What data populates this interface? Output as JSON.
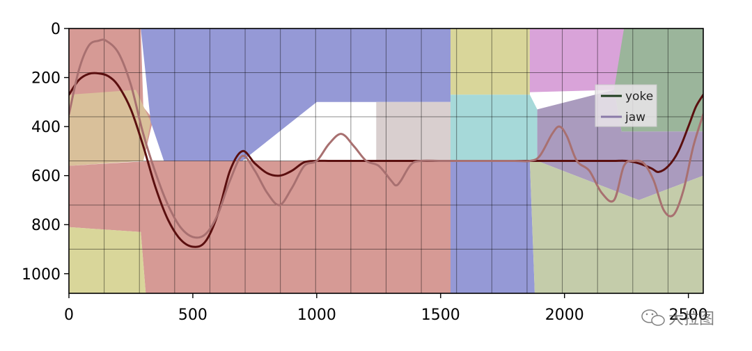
{
  "chart_data": {
    "type": "line",
    "title": "",
    "xlabel": "",
    "ylabel": "",
    "xlim": [
      0,
      2560
    ],
    "ylim": [
      1080,
      0
    ],
    "y_inverted": true,
    "grid": true,
    "x_ticks": [
      0,
      500,
      1000,
      1500,
      2000,
      2500
    ],
    "x_tick_labels": [
      "0",
      "500",
      "1000",
      "1500",
      "2000",
      "2500"
    ],
    "y_ticks": [
      0,
      200,
      400,
      600,
      800,
      1000
    ],
    "y_tick_labels": [
      "0",
      "200",
      "400",
      "600",
      "800",
      "1000"
    ],
    "legend_position": "upper-right",
    "background_regions": [
      {
        "color": "#d69a95",
        "points": [
          [
            0,
            0
          ],
          [
            290,
            0
          ],
          [
            300,
            320
          ],
          [
            340,
            370
          ],
          [
            300,
            540
          ],
          [
            0,
            540
          ]
        ]
      },
      {
        "color": "#d9c09a",
        "points": [
          [
            0,
            270
          ],
          [
            270,
            250
          ],
          [
            330,
            380
          ],
          [
            300,
            540
          ],
          [
            0,
            560
          ]
        ]
      },
      {
        "color": "#9599d6",
        "points": [
          [
            290,
            0
          ],
          [
            1540,
            0
          ],
          [
            1540,
            300
          ],
          [
            1000,
            300
          ],
          [
            700,
            540
          ],
          [
            540,
            710
          ],
          [
            440,
            710
          ],
          [
            330,
            380
          ]
        ]
      },
      {
        "color": "#d69a95",
        "points": [
          [
            0,
            560
          ],
          [
            330,
            540
          ],
          [
            700,
            540
          ],
          [
            1000,
            540
          ],
          [
            1540,
            540
          ],
          [
            1540,
            1080
          ],
          [
            310,
            1080
          ],
          [
            290,
            830
          ],
          [
            0,
            810
          ]
        ]
      },
      {
        "color": "#d9d69a",
        "points": [
          [
            0,
            810
          ],
          [
            290,
            830
          ],
          [
            310,
            1080
          ],
          [
            0,
            1080
          ]
        ]
      },
      {
        "color": "#d9cfcf",
        "points": [
          [
            1240,
            300
          ],
          [
            1540,
            300
          ],
          [
            1540,
            540
          ],
          [
            1000,
            540
          ],
          [
            1240,
            540
          ]
        ]
      },
      {
        "color": "#d9d69a",
        "points": [
          [
            1540,
            0
          ],
          [
            1860,
            0
          ],
          [
            1860,
            270
          ],
          [
            1540,
            270
          ]
        ]
      },
      {
        "color": "#a6d9d9",
        "points": [
          [
            1540,
            270
          ],
          [
            1860,
            270
          ],
          [
            1890,
            330
          ],
          [
            1890,
            540
          ],
          [
            1540,
            540
          ]
        ]
      },
      {
        "color": "#9599d6",
        "points": [
          [
            1540,
            540
          ],
          [
            1860,
            540
          ],
          [
            1880,
            1080
          ],
          [
            1540,
            1080
          ]
        ]
      },
      {
        "color": "#d9a3d9",
        "points": [
          [
            1860,
            0
          ],
          [
            2240,
            0
          ],
          [
            2210,
            250
          ],
          [
            1860,
            260
          ]
        ]
      },
      {
        "color": "#9bb59b",
        "points": [
          [
            2240,
            0
          ],
          [
            2560,
            0
          ],
          [
            2560,
            420
          ],
          [
            2230,
            420
          ],
          [
            2200,
            250
          ]
        ]
      },
      {
        "color": "#aa9bbe",
        "points": [
          [
            1890,
            330
          ],
          [
            2200,
            250
          ],
          [
            2230,
            420
          ],
          [
            2560,
            420
          ],
          [
            2560,
            600
          ],
          [
            2300,
            700
          ],
          [
            1890,
            540
          ]
        ]
      },
      {
        "color": "#c4ccaa",
        "points": [
          [
            1860,
            540
          ],
          [
            1890,
            540
          ],
          [
            2300,
            700
          ],
          [
            2560,
            600
          ],
          [
            2560,
            1080
          ],
          [
            1880,
            1080
          ]
        ]
      }
    ],
    "series": [
      {
        "name": "yoke",
        "color": "#5a0f0f",
        "legend_color": "#1f3d1f",
        "x": [
          0,
          40,
          80,
          120,
          160,
          200,
          250,
          300,
          350,
          400,
          450,
          500,
          550,
          600,
          650,
          700,
          750,
          800,
          850,
          900,
          950,
          1000,
          1050,
          1100,
          1150,
          1200,
          1250,
          1300,
          1350,
          1400,
          1450,
          1500,
          1550,
          1600,
          1650,
          1700,
          1750,
          1800,
          1850,
          1900,
          1950,
          2000,
          2050,
          2100,
          2150,
          2200,
          2250,
          2300,
          2350,
          2380,
          2420,
          2460,
          2500,
          2530,
          2560
        ],
        "values": [
          270,
          210,
          185,
          183,
          195,
          235,
          330,
          480,
          650,
          780,
          860,
          890,
          870,
          760,
          580,
          500,
          550,
          590,
          600,
          580,
          545,
          540,
          540,
          540,
          540,
          540,
          540,
          540,
          540,
          540,
          540,
          540,
          540,
          540,
          540,
          540,
          540,
          540,
          540,
          540,
          540,
          540,
          540,
          540,
          540,
          540,
          540,
          550,
          570,
          585,
          560,
          500,
          400,
          320,
          270
        ]
      },
      {
        "name": "jaw",
        "color": "#a87070",
        "legend_color": "#8a7aa8",
        "x": [
          0,
          40,
          80,
          120,
          150,
          200,
          250,
          300,
          350,
          400,
          450,
          500,
          550,
          600,
          650,
          700,
          750,
          800,
          850,
          900,
          950,
          1000,
          1050,
          1100,
          1150,
          1200,
          1250,
          1300,
          1320,
          1340,
          1380,
          1420,
          1500,
          1600,
          1700,
          1800,
          1860,
          1900,
          1950,
          1980,
          2010,
          2050,
          2100,
          2150,
          2200,
          2240,
          2280,
          2320,
          2360,
          2400,
          2440,
          2480,
          2520,
          2560
        ],
        "values": [
          350,
          170,
          70,
          50,
          50,
          100,
          230,
          430,
          590,
          720,
          810,
          850,
          840,
          760,
          620,
          520,
          580,
          670,
          720,
          650,
          560,
          540,
          470,
          430,
          480,
          540,
          560,
          620,
          640,
          620,
          555,
          540,
          540,
          540,
          540,
          540,
          540,
          520,
          430,
          400,
          440,
          540,
          580,
          670,
          700,
          560,
          540,
          550,
          620,
          740,
          760,
          660,
          480,
          350
        ]
      }
    ]
  },
  "watermark": {
    "text": "大拉图",
    "icon": "wechat-icon"
  }
}
